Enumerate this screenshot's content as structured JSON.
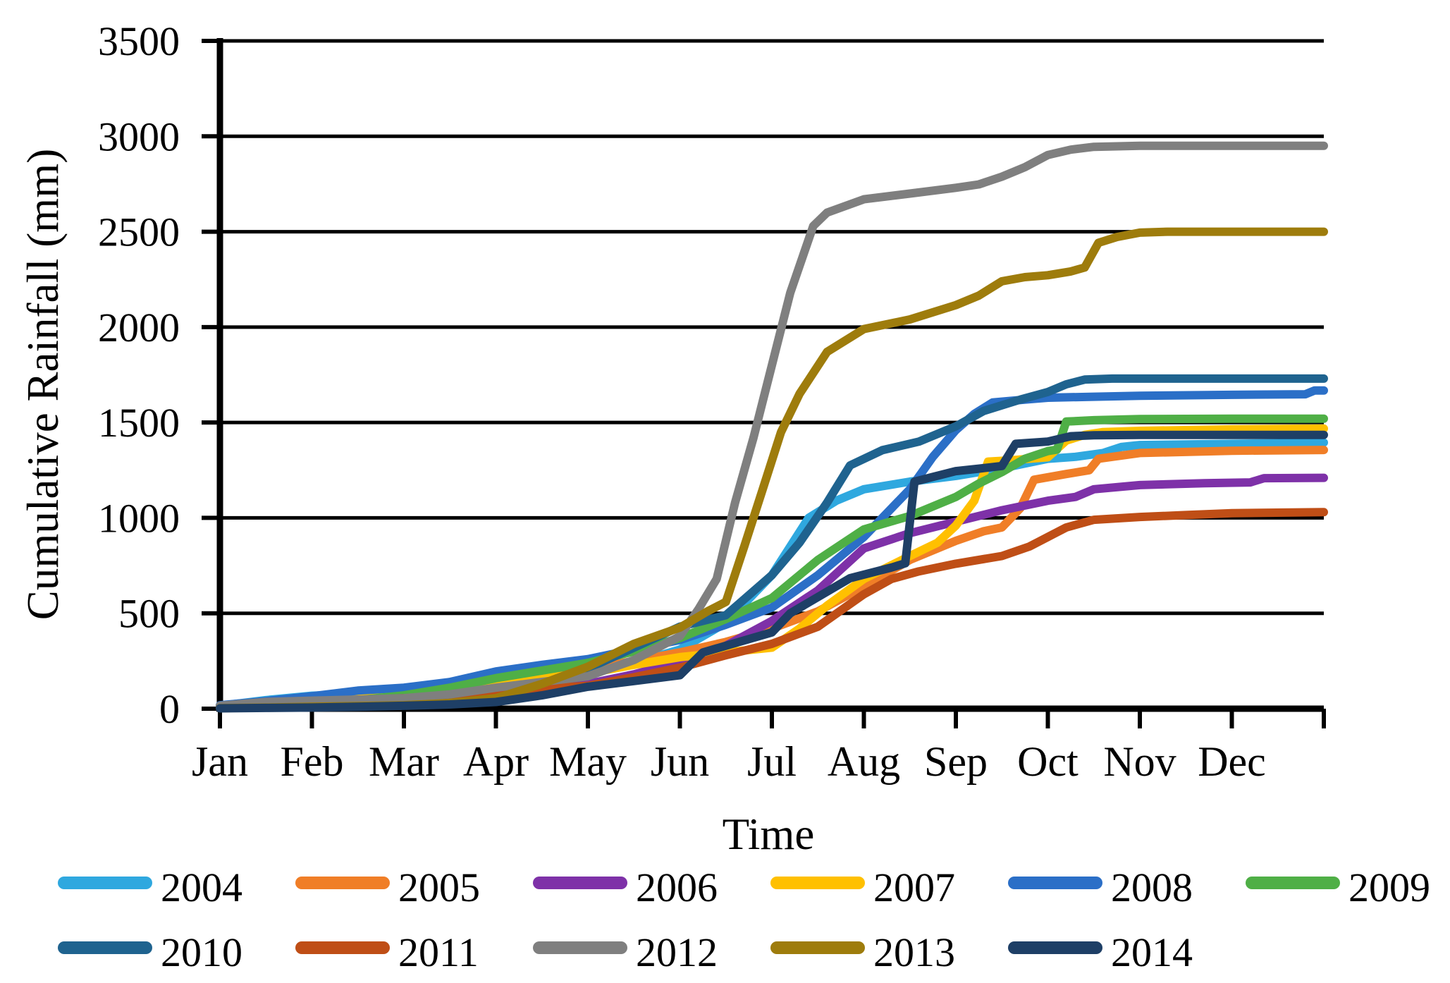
{
  "chart_data": {
    "type": "line",
    "title": "",
    "xlabel": "Time",
    "ylabel": "Cumulative Rainfall (mm)",
    "x_tick_labels": [
      "Jan",
      "Feb",
      "Mar",
      "Apr",
      "May",
      "Jun",
      "Jul",
      "Aug",
      "Sep",
      "Oct",
      "Nov",
      "Dec"
    ],
    "x_range_months": [
      0,
      12
    ],
    "y_ticks": [
      0,
      500,
      1000,
      1500,
      2000,
      2500,
      3000,
      3500
    ],
    "ylim": [
      0,
      3500
    ],
    "grid": "horizontal",
    "legend_position": "bottom",
    "axis_color": "#000000",
    "series": [
      {
        "name": "2004",
        "color": "#2FA8DF",
        "points": [
          [
            0,
            15
          ],
          [
            0.5,
            45
          ],
          [
            1,
            68
          ],
          [
            1.5,
            78
          ],
          [
            2,
            85
          ],
          [
            2.5,
            105
          ],
          [
            3,
            140
          ],
          [
            3.5,
            160
          ],
          [
            4,
            185
          ],
          [
            4.5,
            240
          ],
          [
            5,
            310
          ],
          [
            5.5,
            450
          ],
          [
            6,
            700
          ],
          [
            6.2,
            850
          ],
          [
            6.4,
            1000
          ],
          [
            6.7,
            1090
          ],
          [
            7,
            1150
          ],
          [
            7.5,
            1190
          ],
          [
            8,
            1220
          ],
          [
            8.5,
            1260
          ],
          [
            8.8,
            1290
          ],
          [
            9,
            1310
          ],
          [
            9.3,
            1320
          ],
          [
            9.6,
            1340
          ],
          [
            9.8,
            1372
          ],
          [
            10,
            1382
          ],
          [
            11,
            1388
          ],
          [
            12,
            1395
          ]
        ]
      },
      {
        "name": "2005",
        "color": "#F07E27",
        "points": [
          [
            0,
            8
          ],
          [
            0.5,
            35
          ],
          [
            1,
            55
          ],
          [
            1.5,
            70
          ],
          [
            2,
            80
          ],
          [
            2.5,
            100
          ],
          [
            3,
            150
          ],
          [
            3.5,
            185
          ],
          [
            4,
            210
          ],
          [
            4.5,
            250
          ],
          [
            5,
            295
          ],
          [
            5.5,
            350
          ],
          [
            6,
            420
          ],
          [
            6.5,
            510
          ],
          [
            7,
            640
          ],
          [
            7.5,
            780
          ],
          [
            8,
            880
          ],
          [
            8.3,
            930
          ],
          [
            8.5,
            950
          ],
          [
            8.7,
            1050
          ],
          [
            8.85,
            1200
          ],
          [
            9.2,
            1230
          ],
          [
            9.45,
            1250
          ],
          [
            9.55,
            1310
          ],
          [
            10,
            1340
          ],
          [
            11,
            1352
          ],
          [
            12,
            1356
          ]
        ]
      },
      {
        "name": "2006",
        "color": "#7E31A8",
        "points": [
          [
            0,
            5
          ],
          [
            0.5,
            12
          ],
          [
            1,
            22
          ],
          [
            1.5,
            35
          ],
          [
            2,
            50
          ],
          [
            2.5,
            70
          ],
          [
            3,
            90
          ],
          [
            3.5,
            110
          ],
          [
            4,
            130
          ],
          [
            4.5,
            180
          ],
          [
            5,
            245
          ],
          [
            5.5,
            330
          ],
          [
            6,
            460
          ],
          [
            6.5,
            620
          ],
          [
            7,
            840
          ],
          [
            7.5,
            920
          ],
          [
            8,
            980
          ],
          [
            8.5,
            1040
          ],
          [
            9,
            1090
          ],
          [
            9.3,
            1110
          ],
          [
            9.5,
            1150
          ],
          [
            10,
            1172
          ],
          [
            10.7,
            1182
          ],
          [
            11.2,
            1186
          ],
          [
            11.35,
            1208
          ],
          [
            12,
            1210
          ]
        ]
      },
      {
        "name": "2007",
        "color": "#FFC000",
        "points": [
          [
            0,
            5
          ],
          [
            0.5,
            15
          ],
          [
            1,
            30
          ],
          [
            1.5,
            55
          ],
          [
            2,
            80
          ],
          [
            2.5,
            110
          ],
          [
            3,
            140
          ],
          [
            3.5,
            160
          ],
          [
            4,
            185
          ],
          [
            4.5,
            230
          ],
          [
            5,
            270
          ],
          [
            5.5,
            295
          ],
          [
            6,
            320
          ],
          [
            6.3,
            420
          ],
          [
            6.6,
            540
          ],
          [
            7,
            680
          ],
          [
            7.5,
            800
          ],
          [
            7.8,
            870
          ],
          [
            8,
            960
          ],
          [
            8.2,
            1090
          ],
          [
            8.35,
            1295
          ],
          [
            8.6,
            1302
          ],
          [
            9,
            1318
          ],
          [
            9.2,
            1405
          ],
          [
            9.4,
            1435
          ],
          [
            9.6,
            1450
          ],
          [
            10,
            1456
          ],
          [
            11,
            1464
          ],
          [
            12,
            1468
          ]
        ]
      },
      {
        "name": "2008",
        "color": "#2B6FC7",
        "points": [
          [
            0,
            18
          ],
          [
            0.5,
            40
          ],
          [
            1,
            65
          ],
          [
            1.5,
            95
          ],
          [
            2,
            110
          ],
          [
            2.5,
            140
          ],
          [
            3,
            195
          ],
          [
            3.5,
            230
          ],
          [
            4,
            260
          ],
          [
            4.5,
            310
          ],
          [
            5,
            360
          ],
          [
            5.5,
            440
          ],
          [
            6,
            530
          ],
          [
            6.5,
            700
          ],
          [
            7,
            900
          ],
          [
            7.5,
            1150
          ],
          [
            7.75,
            1320
          ],
          [
            8,
            1460
          ],
          [
            8.2,
            1545
          ],
          [
            8.4,
            1605
          ],
          [
            8.8,
            1622
          ],
          [
            9,
            1630
          ],
          [
            9.5,
            1635
          ],
          [
            10,
            1640
          ],
          [
            11,
            1645
          ],
          [
            11.8,
            1648
          ],
          [
            11.9,
            1668
          ],
          [
            12,
            1668
          ]
        ]
      },
      {
        "name": "2009",
        "color": "#4FAF46",
        "points": [
          [
            0,
            5
          ],
          [
            0.5,
            15
          ],
          [
            1,
            28
          ],
          [
            1.5,
            45
          ],
          [
            2,
            70
          ],
          [
            2.5,
            110
          ],
          [
            3,
            160
          ],
          [
            3.5,
            200
          ],
          [
            4,
            240
          ],
          [
            4.5,
            300
          ],
          [
            5,
            370
          ],
          [
            5.5,
            470
          ],
          [
            6,
            580
          ],
          [
            6.5,
            780
          ],
          [
            7,
            940
          ],
          [
            7.5,
            1010
          ],
          [
            7.75,
            1060
          ],
          [
            8,
            1110
          ],
          [
            8.25,
            1180
          ],
          [
            8.5,
            1240
          ],
          [
            8.75,
            1310
          ],
          [
            9,
            1350
          ],
          [
            9.1,
            1358
          ],
          [
            9.2,
            1505
          ],
          [
            9.5,
            1512
          ],
          [
            10,
            1518
          ],
          [
            11,
            1520
          ],
          [
            12,
            1520
          ]
        ]
      },
      {
        "name": "2010",
        "color": "#1F638F",
        "points": [
          [
            0,
            5
          ],
          [
            0.5,
            8
          ],
          [
            1,
            12
          ],
          [
            1.5,
            22
          ],
          [
            2,
            35
          ],
          [
            2.5,
            50
          ],
          [
            3,
            65
          ],
          [
            3.5,
            120
          ],
          [
            4,
            210
          ],
          [
            4.5,
            320
          ],
          [
            5,
            430
          ],
          [
            5.5,
            490
          ],
          [
            6,
            700
          ],
          [
            6.3,
            870
          ],
          [
            6.6,
            1080
          ],
          [
            6.85,
            1275
          ],
          [
            7.2,
            1355
          ],
          [
            7.6,
            1400
          ],
          [
            8,
            1480
          ],
          [
            8.3,
            1560
          ],
          [
            8.7,
            1620
          ],
          [
            9,
            1660
          ],
          [
            9.2,
            1700
          ],
          [
            9.4,
            1725
          ],
          [
            9.7,
            1730
          ],
          [
            10,
            1730
          ],
          [
            11,
            1730
          ],
          [
            12,
            1730
          ]
        ]
      },
      {
        "name": "2011",
        "color": "#BF4E16",
        "points": [
          [
            0,
            8
          ],
          [
            0.5,
            20
          ],
          [
            1,
            32
          ],
          [
            1.5,
            45
          ],
          [
            2,
            55
          ],
          [
            2.5,
            70
          ],
          [
            3,
            85
          ],
          [
            3.5,
            105
          ],
          [
            4,
            120
          ],
          [
            4.5,
            165
          ],
          [
            5,
            215
          ],
          [
            5.5,
            280
          ],
          [
            6,
            340
          ],
          [
            6.5,
            430
          ],
          [
            7,
            600
          ],
          [
            7.3,
            680
          ],
          [
            7.6,
            720
          ],
          [
            8,
            760
          ],
          [
            8.5,
            800
          ],
          [
            8.8,
            850
          ],
          [
            9,
            900
          ],
          [
            9.2,
            950
          ],
          [
            9.5,
            990
          ],
          [
            10,
            1005
          ],
          [
            10.5,
            1015
          ],
          [
            11,
            1025
          ],
          [
            12,
            1030
          ]
        ]
      },
      {
        "name": "2012",
        "color": "#7F7F7F",
        "points": [
          [
            0,
            15
          ],
          [
            0.5,
            35
          ],
          [
            1,
            42
          ],
          [
            1.5,
            48
          ],
          [
            2,
            55
          ],
          [
            2.5,
            75
          ],
          [
            3,
            110
          ],
          [
            3.5,
            140
          ],
          [
            4,
            170
          ],
          [
            4.5,
            255
          ],
          [
            5,
            380
          ],
          [
            5.2,
            520
          ],
          [
            5.4,
            680
          ],
          [
            5.6,
            1080
          ],
          [
            5.8,
            1420
          ],
          [
            6,
            1800
          ],
          [
            6.2,
            2180
          ],
          [
            6.45,
            2530
          ],
          [
            6.6,
            2600
          ],
          [
            7,
            2670
          ],
          [
            7.5,
            2700
          ],
          [
            8,
            2730
          ],
          [
            8.25,
            2748
          ],
          [
            8.5,
            2788
          ],
          [
            8.75,
            2838
          ],
          [
            9,
            2902
          ],
          [
            9.25,
            2930
          ],
          [
            9.5,
            2945
          ],
          [
            10,
            2950
          ],
          [
            11,
            2950
          ],
          [
            12,
            2950
          ]
        ]
      },
      {
        "name": "2013",
        "color": "#9E7C0C",
        "points": [
          [
            0,
            3
          ],
          [
            0.5,
            6
          ],
          [
            1,
            10
          ],
          [
            1.5,
            14
          ],
          [
            2,
            18
          ],
          [
            2.5,
            30
          ],
          [
            3,
            55
          ],
          [
            3.5,
            130
          ],
          [
            4,
            220
          ],
          [
            4.5,
            340
          ],
          [
            5,
            425
          ],
          [
            5.3,
            510
          ],
          [
            5.5,
            560
          ],
          [
            5.7,
            850
          ],
          [
            5.9,
            1150
          ],
          [
            6.1,
            1450
          ],
          [
            6.3,
            1650
          ],
          [
            6.6,
            1870
          ],
          [
            7,
            1990
          ],
          [
            7.5,
            2040
          ],
          [
            8,
            2115
          ],
          [
            8.25,
            2165
          ],
          [
            8.5,
            2240
          ],
          [
            8.75,
            2262
          ],
          [
            9,
            2272
          ],
          [
            9.25,
            2292
          ],
          [
            9.4,
            2312
          ],
          [
            9.55,
            2442
          ],
          [
            9.75,
            2472
          ],
          [
            10,
            2495
          ],
          [
            10.3,
            2500
          ],
          [
            11,
            2500
          ],
          [
            12,
            2500
          ]
        ]
      },
      {
        "name": "2014",
        "color": "#1E3F66",
        "points": [
          [
            0,
            2
          ],
          [
            0.5,
            4
          ],
          [
            1,
            6
          ],
          [
            1.5,
            10
          ],
          [
            2,
            15
          ],
          [
            2.5,
            22
          ],
          [
            3,
            35
          ],
          [
            3.5,
            70
          ],
          [
            4,
            115
          ],
          [
            4.5,
            145
          ],
          [
            5,
            175
          ],
          [
            5.25,
            295
          ],
          [
            5.5,
            330
          ],
          [
            6,
            400
          ],
          [
            6.2,
            500
          ],
          [
            6.85,
            684
          ],
          [
            7.3,
            740
          ],
          [
            7.45,
            762
          ],
          [
            7.55,
            1190
          ],
          [
            7.75,
            1215
          ],
          [
            8,
            1245
          ],
          [
            8.25,
            1258
          ],
          [
            8.5,
            1272
          ],
          [
            8.65,
            1388
          ],
          [
            9,
            1400
          ],
          [
            9.25,
            1428
          ],
          [
            9.5,
            1433
          ],
          [
            10,
            1435
          ],
          [
            11,
            1435
          ],
          [
            12,
            1435
          ]
        ]
      }
    ]
  }
}
